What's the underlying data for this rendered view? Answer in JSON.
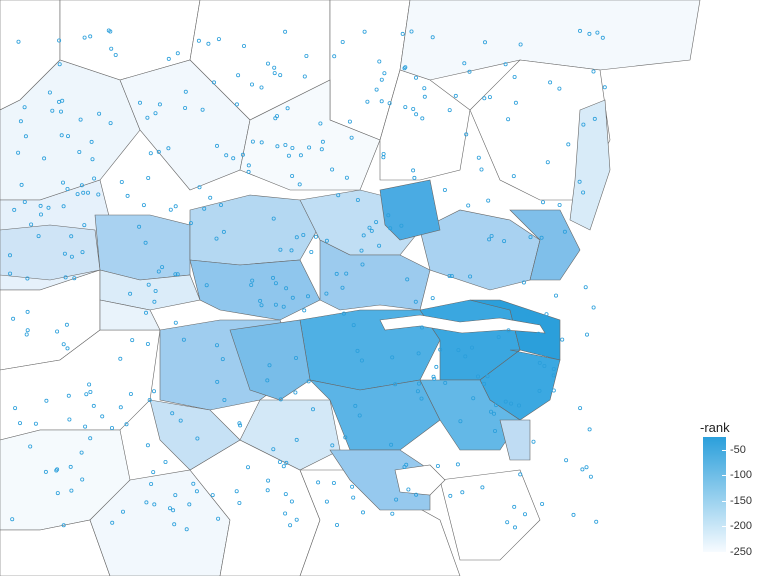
{
  "colors": {
    "low": "#f7fbff",
    "high": "#2b9fdb",
    "border": "#666666",
    "point": "#2b9fdb",
    "background": "#ffffff"
  },
  "legend": {
    "title": "-rank",
    "min": -250,
    "max": -25,
    "ticks": [
      {
        "value": -50,
        "label": "-50"
      },
      {
        "value": -100,
        "label": "-100"
      },
      {
        "value": -150,
        "label": "-150"
      },
      {
        "value": -200,
        "label": "-200"
      },
      {
        "value": -250,
        "label": "-250"
      }
    ]
  }
}
